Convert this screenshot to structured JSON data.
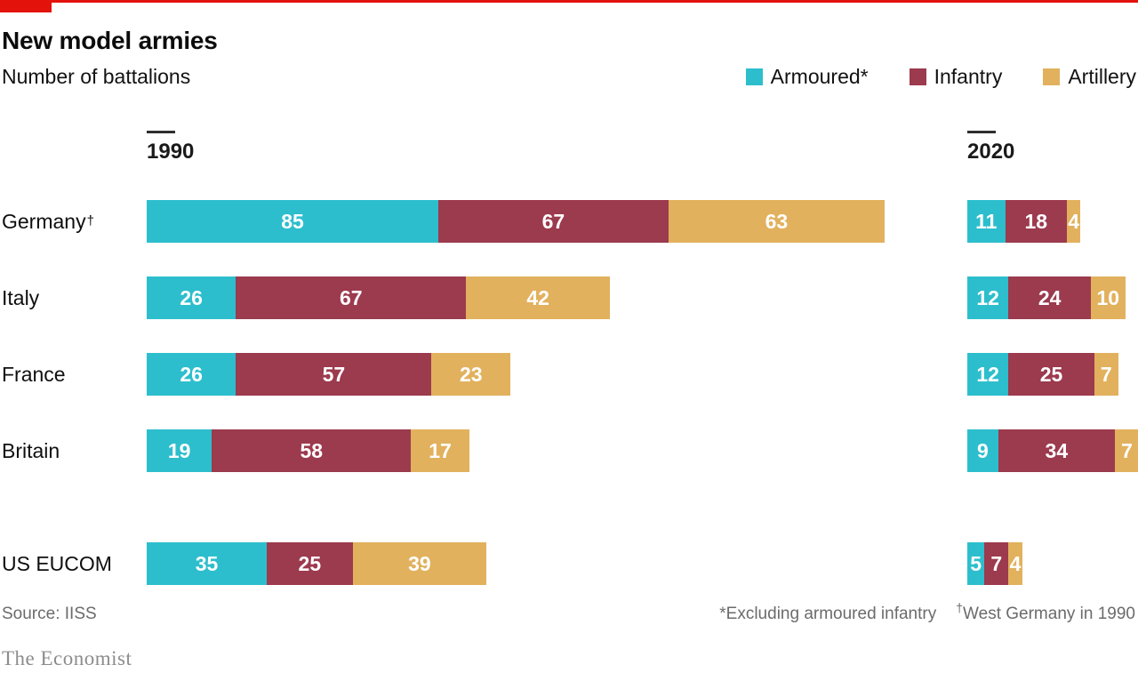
{
  "header": {
    "title": "New model armies",
    "subtitle": "Number of battalions"
  },
  "legend": [
    {
      "label": "Armoured*",
      "color": "#2DBECD"
    },
    {
      "label": "Infantry",
      "color": "#9C3A4E"
    },
    {
      "label": "Artillery",
      "color": "#E2B15D"
    }
  ],
  "rows": [
    {
      "label": "Germany",
      "mark": "†"
    },
    {
      "label": "Italy",
      "mark": ""
    },
    {
      "label": "France",
      "mark": ""
    },
    {
      "label": "Britain",
      "mark": ""
    },
    {
      "label": "US EUCOM",
      "mark": ""
    }
  ],
  "chart_data": {
    "type": "bar",
    "subtype": "horizontal-stacked-grouped",
    "title": "New model armies",
    "subtitle": "Number of battalions",
    "unit": "battalions",
    "grid": false,
    "legend_position": "top-right",
    "series_names": [
      "Armoured*",
      "Infantry",
      "Artillery"
    ],
    "series_colors": [
      "#2DBECD",
      "#9C3A4E",
      "#E2B15D"
    ],
    "categories": [
      "Germany†",
      "Italy",
      "France",
      "Britain",
      "US EUCOM"
    ],
    "panels": [
      {
        "label": "1990",
        "series": [
          {
            "name": "Armoured*",
            "values": [
              85,
              26,
              26,
              19,
              35
            ]
          },
          {
            "name": "Infantry",
            "values": [
              67,
              67,
              57,
              58,
              25
            ]
          },
          {
            "name": "Artillery",
            "values": [
              63,
              42,
              23,
              17,
              39
            ]
          }
        ]
      },
      {
        "label": "2020",
        "series": [
          {
            "name": "Armoured*",
            "values": [
              11,
              12,
              12,
              9,
              5
            ]
          },
          {
            "name": "Infantry",
            "values": [
              18,
              24,
              25,
              34,
              7
            ]
          },
          {
            "name": "Artillery",
            "values": [
              4,
              10,
              7,
              7,
              4
            ]
          }
        ]
      }
    ]
  },
  "footer": {
    "source": "Source: IISS",
    "note_armoured": "*Excluding armoured infantry",
    "note_germany_mark": "†",
    "note_germany_text": "West Germany in 1990",
    "brand": "The Economist"
  },
  "colors": {
    "economist_red": "#E3120B",
    "background": "#FFFFFF",
    "bar_value_text": "#FFFFFF"
  }
}
